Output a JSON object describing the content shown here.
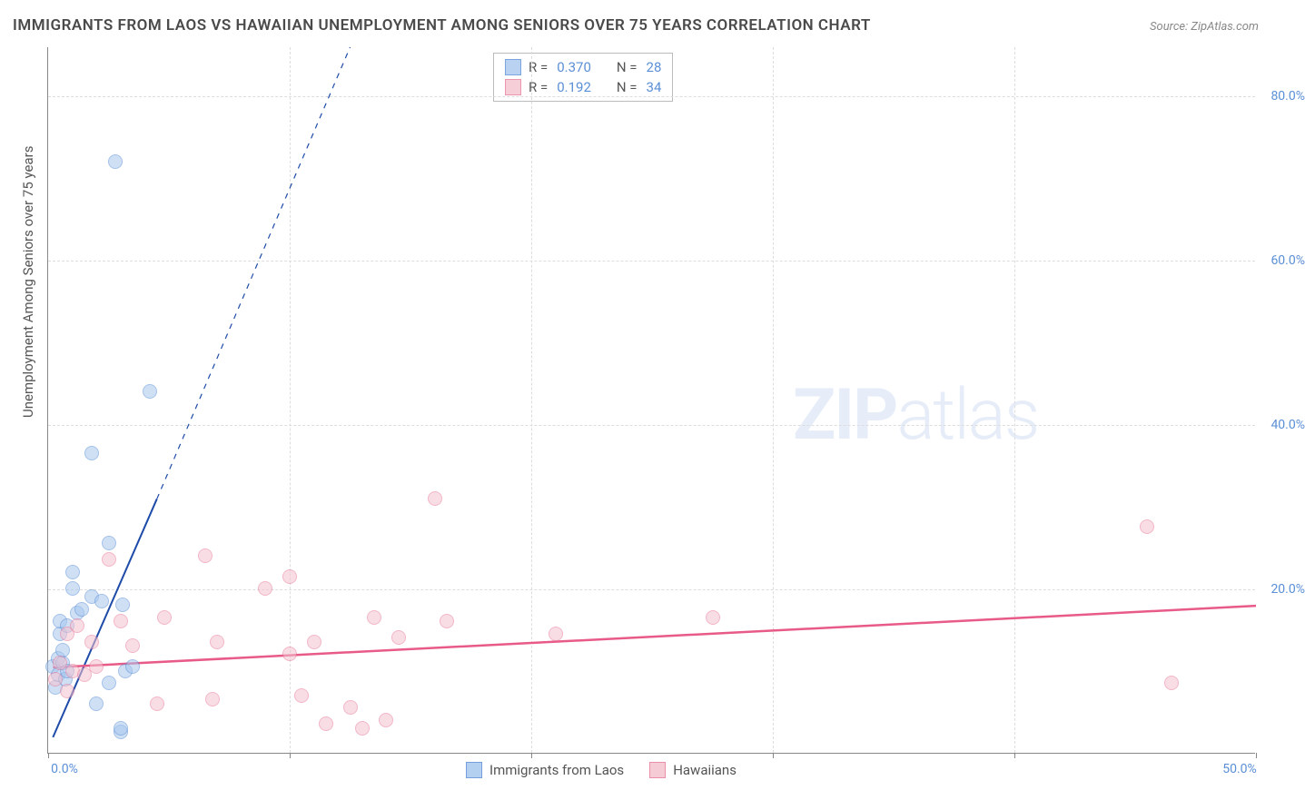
{
  "title": "IMMIGRANTS FROM LAOS VS HAWAIIAN UNEMPLOYMENT AMONG SENIORS OVER 75 YEARS CORRELATION CHART",
  "source": "Source: ZipAtlas.com",
  "watermark_bold": "ZIP",
  "watermark_light": "atlas",
  "chart": {
    "type": "scatter",
    "background_color": "#ffffff",
    "grid_color": "#dddddd",
    "axis_color": "#888888",
    "tick_label_color": "#5b8fd6",
    "axis_title_color": "#555555",
    "xlim": [
      0,
      50
    ],
    "ylim": [
      0,
      86
    ],
    "x_ticks": [
      0,
      10,
      20,
      30,
      40,
      50
    ],
    "x_tick_labels": [
      "0.0%",
      "",
      "",
      "",
      "",
      "50.0%"
    ],
    "y_ticks": [
      20,
      40,
      60,
      80
    ],
    "y_tick_labels": [
      "20.0%",
      "40.0%",
      "60.0%",
      "80.0%"
    ],
    "y_axis_title": "Unemployment Among Seniors over 75 years",
    "point_radius": 8,
    "series": [
      {
        "name": "Immigrants from Laos",
        "fill_color": "#a8c8ee",
        "stroke_color": "#5b8fd6",
        "fill_opacity": 0.55,
        "R": "0.370",
        "N": "28",
        "trend": {
          "color": "#1e4ba8",
          "solid_to_x": 4.5,
          "solid_to_y": 31,
          "dash_to_x": 12.5,
          "dash_to_y": 86,
          "from_x": 0.2,
          "from_y": 2.0,
          "width": 2
        },
        "points": [
          {
            "x": 0.2,
            "y": 10.5
          },
          {
            "x": 0.4,
            "y": 11.5
          },
          {
            "x": 0.4,
            "y": 9.5
          },
          {
            "x": 0.5,
            "y": 14.5
          },
          {
            "x": 0.5,
            "y": 16.0
          },
          {
            "x": 0.6,
            "y": 11.0
          },
          {
            "x": 0.7,
            "y": 9.0
          },
          {
            "x": 0.8,
            "y": 10.0
          },
          {
            "x": 0.8,
            "y": 15.5
          },
          {
            "x": 1.0,
            "y": 20.0
          },
          {
            "x": 1.0,
            "y": 22.0
          },
          {
            "x": 1.2,
            "y": 17.0
          },
          {
            "x": 1.4,
            "y": 17.5
          },
          {
            "x": 1.8,
            "y": 19.0
          },
          {
            "x": 2.0,
            "y": 6.0
          },
          {
            "x": 2.2,
            "y": 18.5
          },
          {
            "x": 2.5,
            "y": 25.5
          },
          {
            "x": 2.5,
            "y": 8.5
          },
          {
            "x": 1.8,
            "y": 36.5
          },
          {
            "x": 2.8,
            "y": 72.0
          },
          {
            "x": 3.0,
            "y": 2.5
          },
          {
            "x": 3.0,
            "y": 3.0
          },
          {
            "x": 3.1,
            "y": 18.0
          },
          {
            "x": 3.2,
            "y": 10.0
          },
          {
            "x": 3.5,
            "y": 10.5
          },
          {
            "x": 4.2,
            "y": 44.0
          },
          {
            "x": 0.3,
            "y": 8.0
          },
          {
            "x": 0.6,
            "y": 12.5
          }
        ]
      },
      {
        "name": "Hawaiians",
        "fill_color": "#f4c2cf",
        "stroke_color": "#e87b9b",
        "fill_opacity": 0.55,
        "R": "0.192",
        "N": "34",
        "trend": {
          "color": "#e85a88",
          "from_x": 0.2,
          "from_y": 10.5,
          "to_x": 50,
          "to_y": 18.0,
          "width": 2.5
        },
        "points": [
          {
            "x": 0.3,
            "y": 9.0
          },
          {
            "x": 0.5,
            "y": 11.0
          },
          {
            "x": 0.8,
            "y": 7.5
          },
          {
            "x": 0.8,
            "y": 14.5
          },
          {
            "x": 1.0,
            "y": 10.0
          },
          {
            "x": 1.2,
            "y": 15.5
          },
          {
            "x": 1.5,
            "y": 9.5
          },
          {
            "x": 1.8,
            "y": 13.5
          },
          {
            "x": 2.0,
            "y": 10.5
          },
          {
            "x": 2.5,
            "y": 23.5
          },
          {
            "x": 3.0,
            "y": 16.0
          },
          {
            "x": 3.5,
            "y": 13.0
          },
          {
            "x": 4.5,
            "y": 6.0
          },
          {
            "x": 4.8,
            "y": 16.5
          },
          {
            "x": 6.5,
            "y": 24.0
          },
          {
            "x": 6.8,
            "y": 6.5
          },
          {
            "x": 7.0,
            "y": 13.5
          },
          {
            "x": 9.0,
            "y": 20.0
          },
          {
            "x": 10.0,
            "y": 21.5
          },
          {
            "x": 10.0,
            "y": 12.0
          },
          {
            "x": 10.5,
            "y": 7.0
          },
          {
            "x": 11.0,
            "y": 13.5
          },
          {
            "x": 11.5,
            "y": 3.5
          },
          {
            "x": 12.5,
            "y": 5.5
          },
          {
            "x": 13.0,
            "y": 3.0
          },
          {
            "x": 13.5,
            "y": 16.5
          },
          {
            "x": 14.0,
            "y": 4.0
          },
          {
            "x": 14.5,
            "y": 14.0
          },
          {
            "x": 16.0,
            "y": 31.0
          },
          {
            "x": 16.5,
            "y": 16.0
          },
          {
            "x": 21.0,
            "y": 14.5
          },
          {
            "x": 27.5,
            "y": 16.5
          },
          {
            "x": 45.5,
            "y": 27.5
          },
          {
            "x": 46.5,
            "y": 8.5
          }
        ]
      }
    ],
    "legend_bottom": [
      {
        "label": "Immigrants from Laos",
        "fill": "#a8c8ee",
        "stroke": "#5b8fd6"
      },
      {
        "label": "Hawaiians",
        "fill": "#f4c2cf",
        "stroke": "#e87b9b"
      }
    ]
  }
}
